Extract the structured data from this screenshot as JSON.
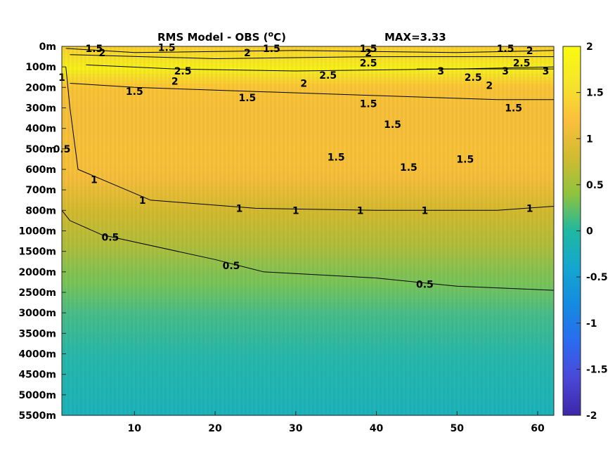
{
  "chart_data": {
    "type": "heatmap",
    "title_main": "RMS Model - OBS (",
    "title_sup": "o",
    "title_end": "C)",
    "max_label": "MAX=3.33",
    "xlim": [
      1,
      62
    ],
    "x_ticks": [
      10,
      20,
      30,
      40,
      50,
      60
    ],
    "y_ticks": [
      "0m",
      "100m",
      "200m",
      "300m",
      "400m",
      "500m",
      "600m",
      "700m",
      "800m",
      "1000m",
      "1500m",
      "2000m",
      "2500m",
      "3000m",
      "3500m",
      "4000m",
      "4500m",
      "5000m",
      "5500m"
    ],
    "colorbar": {
      "clim": [
        -2,
        2
      ],
      "ticks": [
        "2",
        "1.5",
        "1",
        "0.5",
        "0",
        "-0.5",
        "-1",
        "-1.5",
        "-2"
      ],
      "colormap": "parula"
    },
    "depth_profile": [
      {
        "depth": "0m",
        "value": 1.6
      },
      {
        "depth": "100m",
        "value": 1.9
      },
      {
        "depth": "200m",
        "value": 1.4
      },
      {
        "depth": "300m",
        "value": 1.3
      },
      {
        "depth": "400m",
        "value": 1.3
      },
      {
        "depth": "500m",
        "value": 1.35
      },
      {
        "depth": "600m",
        "value": 1.3
      },
      {
        "depth": "700m",
        "value": 1.15
      },
      {
        "depth": "800m",
        "value": 1.0
      },
      {
        "depth": "1000m",
        "value": 0.85
      },
      {
        "depth": "1500m",
        "value": 0.7
      },
      {
        "depth": "2000m",
        "value": 0.55
      },
      {
        "depth": "2500m",
        "value": 0.45
      },
      {
        "depth": "3000m",
        "value": 0.35
      },
      {
        "depth": "3500m",
        "value": 0.3
      },
      {
        "depth": "4000m",
        "value": 0.25
      },
      {
        "depth": "4500m",
        "value": 0.2
      },
      {
        "depth": "5000m",
        "value": 0.15
      },
      {
        "depth": "5500m",
        "value": 0.1
      }
    ],
    "contours": [
      {
        "level": "1.5",
        "points": [
          [
            1.5,
            "10m"
          ],
          [
            10,
            "30m"
          ],
          [
            30,
            "20m"
          ],
          [
            50,
            "30m"
          ],
          [
            62,
            "20m"
          ]
        ]
      },
      {
        "level": "2",
        "points": [
          [
            2,
            "40m"
          ],
          [
            20,
            "60m"
          ],
          [
            40,
            "50m"
          ],
          [
            62,
            "50m"
          ]
        ]
      },
      {
        "level": "2.5",
        "points": [
          [
            4,
            "90m"
          ],
          [
            15,
            "110m"
          ],
          [
            30,
            "120m"
          ],
          [
            50,
            "110m"
          ],
          [
            62,
            "100m"
          ]
        ]
      },
      {
        "level": "3",
        "points": [
          [
            45,
            "110m"
          ],
          [
            62,
            "110m"
          ]
        ]
      },
      {
        "level": "1.5",
        "points": [
          [
            2,
            "180m"
          ],
          [
            10,
            "200m"
          ],
          [
            25,
            "220m"
          ],
          [
            40,
            "240m"
          ],
          [
            55,
            "260m"
          ],
          [
            62,
            "260m"
          ]
        ]
      },
      {
        "level": "1",
        "points": [
          [
            1.5,
            "100m"
          ],
          [
            2,
            "300m"
          ],
          [
            3,
            "600m"
          ],
          [
            6,
            "650m"
          ],
          [
            12,
            "750m"
          ],
          [
            25,
            "790m"
          ],
          [
            40,
            "800m"
          ],
          [
            55,
            "800m"
          ],
          [
            62,
            "780m"
          ]
        ]
      },
      {
        "level": "0.5",
        "points": [
          [
            1,
            "800m"
          ],
          [
            2,
            "900m"
          ],
          [
            6,
            "1100m"
          ],
          [
            20,
            "1700m"
          ],
          [
            26,
            "2000m"
          ],
          [
            40,
            "2150m"
          ],
          [
            50,
            "2350m"
          ],
          [
            62,
            "2450m"
          ]
        ]
      }
    ],
    "contour_labels": [
      {
        "text": "1.5",
        "x": 5,
        "depth": "10m"
      },
      {
        "text": "1.5",
        "x": 14,
        "depth": "5m"
      },
      {
        "text": "1.5",
        "x": 27,
        "depth": "10m"
      },
      {
        "text": "1.5",
        "x": 39,
        "depth": "10m"
      },
      {
        "text": "1.5",
        "x": 56,
        "depth": "10m"
      },
      {
        "text": "2",
        "x": 6,
        "depth": "30m"
      },
      {
        "text": "2",
        "x": 24,
        "depth": "30m"
      },
      {
        "text": "2",
        "x": 39,
        "depth": "30m"
      },
      {
        "text": "2",
        "x": 59,
        "depth": "20m"
      },
      {
        "text": "2.5",
        "x": 16,
        "depth": "120m"
      },
      {
        "text": "2.5",
        "x": 39,
        "depth": "80m"
      },
      {
        "text": "2.5",
        "x": 34,
        "depth": "140m"
      },
      {
        "text": "2.5",
        "x": 52,
        "depth": "150m"
      },
      {
        "text": "2.5",
        "x": 58,
        "depth": "80m"
      },
      {
        "text": "3",
        "x": 48,
        "depth": "120m"
      },
      {
        "text": "3",
        "x": 56,
        "depth": "120m"
      },
      {
        "text": "3",
        "x": 61,
        "depth": "120m"
      },
      {
        "text": "2",
        "x": 15,
        "depth": "170m"
      },
      {
        "text": "2",
        "x": 31,
        "depth": "180m"
      },
      {
        "text": "2",
        "x": 54,
        "depth": "190m"
      },
      {
        "text": "1.5",
        "x": 10,
        "depth": "220m"
      },
      {
        "text": "1.5",
        "x": 24,
        "depth": "250m"
      },
      {
        "text": "1.5",
        "x": 39,
        "depth": "280m"
      },
      {
        "text": "1.5",
        "x": 57,
        "depth": "300m"
      },
      {
        "text": "1.5",
        "x": 42,
        "depth": "380m"
      },
      {
        "text": "1.5",
        "x": 35,
        "depth": "540m"
      },
      {
        "text": "1.5",
        "x": 44,
        "depth": "590m"
      },
      {
        "text": "1.5",
        "x": 51,
        "depth": "550m"
      },
      {
        "text": "1",
        "x": 5,
        "depth": "650m"
      },
      {
        "text": "1",
        "x": 11,
        "depth": "750m"
      },
      {
        "text": "1",
        "x": 23,
        "depth": "790m"
      },
      {
        "text": "1",
        "x": 30,
        "depth": "800m"
      },
      {
        "text": "1",
        "x": 38,
        "depth": "800m"
      },
      {
        "text": "1",
        "x": 46,
        "depth": "800m"
      },
      {
        "text": "1",
        "x": 59,
        "depth": "790m"
      },
      {
        "text": "0.5",
        "x": 1,
        "depth": "500m"
      },
      {
        "text": "0.5",
        "x": 7,
        "depth": "1150m"
      },
      {
        "text": "0.5",
        "x": 22,
        "depth": "1850m"
      },
      {
        "text": "0.5",
        "x": 46,
        "depth": "2300m"
      },
      {
        "text": "1",
        "x": 1,
        "depth": "150m"
      }
    ]
  }
}
